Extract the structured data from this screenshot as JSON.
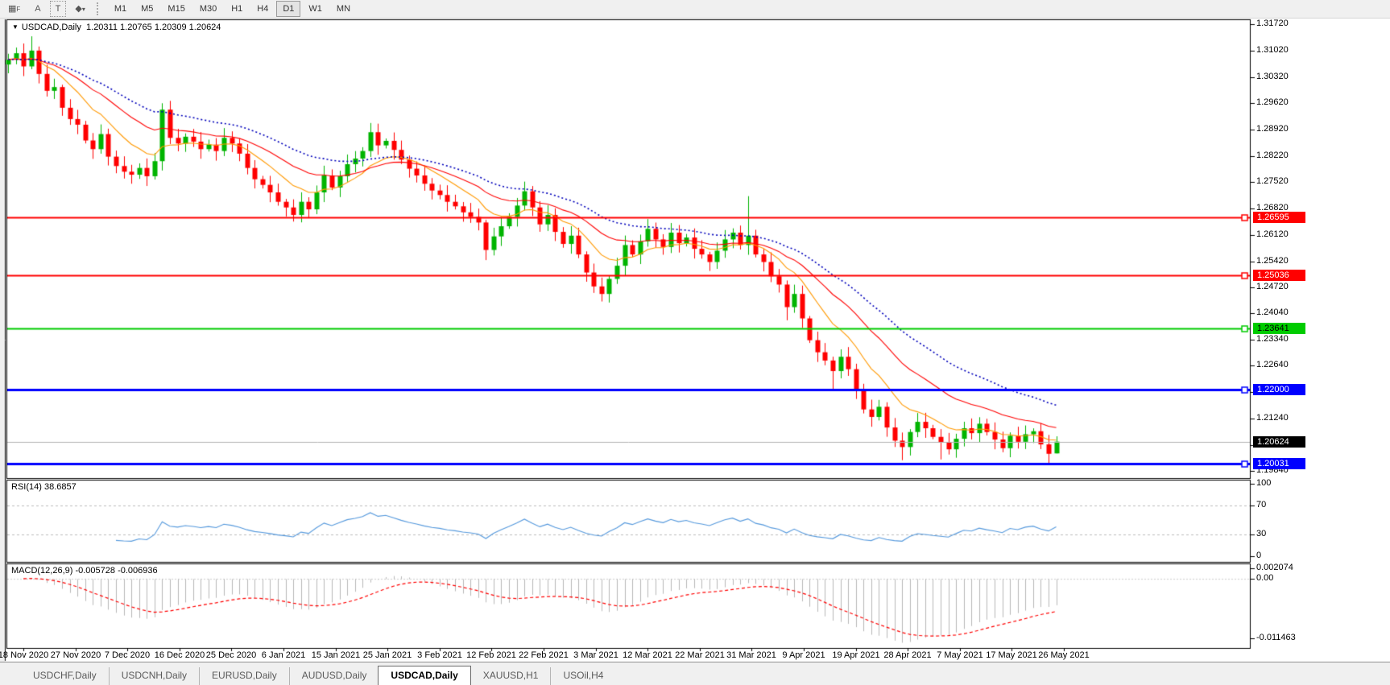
{
  "toolbar": {
    "tools": [
      {
        "name": "indicator-grid",
        "glyph": "▦",
        "sub": "F"
      },
      {
        "name": "text-label",
        "glyph": "A",
        "sub": ""
      },
      {
        "name": "text-box",
        "glyph": "T",
        "sub": ""
      },
      {
        "name": "shapes-dropdown",
        "glyph": "◆",
        "sub": "▾"
      }
    ],
    "timeframes": [
      "M1",
      "M5",
      "M15",
      "M30",
      "H1",
      "H4",
      "D1",
      "W1",
      "MN"
    ],
    "active_timeframe": "D1"
  },
  "chart": {
    "title_symbol": "USDCAD,Daily",
    "title_ohlc": "1.20311 1.20765 1.20309 1.20624",
    "dropdown_glyph": "▼"
  },
  "price_axis": {
    "ticks": [
      "1.31720",
      "1.31020",
      "1.30320",
      "1.29620",
      "1.28920",
      "1.28220",
      "1.27520",
      "1.26820",
      "1.26120",
      "1.25420",
      "1.24720",
      "1.24040",
      "1.23340",
      "1.22640",
      "1.21940",
      "1.21240",
      "1.20540",
      "1.19840"
    ]
  },
  "hlines": [
    {
      "price": "1.26595",
      "value": 1.26595,
      "color": "#ff0000",
      "width": 2,
      "text_color": "#ffffff"
    },
    {
      "price": "1.25036",
      "value": 1.25036,
      "color": "#ff0000",
      "width": 2,
      "text_color": "#ffffff"
    },
    {
      "price": "1.23641",
      "value": 1.23641,
      "color": "#00cc00",
      "width": 2,
      "text_color": "#000000"
    },
    {
      "price": "1.22000",
      "value": 1.22,
      "color": "#0000ff",
      "width": 3,
      "text_color": "#ffffff"
    },
    {
      "price": "1.20031",
      "value": 1.20031,
      "color": "#0000ff",
      "width": 3,
      "text_color": "#ffffff"
    }
  ],
  "current_price": {
    "price": "1.20624",
    "value": 1.20624,
    "line_color": "#b4b4b4",
    "bg": "#000000",
    "text_color": "#ffffff"
  },
  "rsi": {
    "label": "RSI(14) 38.6857",
    "period": 14,
    "last_value": 38.6857,
    "axis_labels": [
      "100",
      "70",
      "30",
      "0"
    ],
    "axis_values": [
      100,
      70,
      30,
      0
    ],
    "dashed_levels": [
      70,
      30
    ],
    "line_color": "#5599dd"
  },
  "macd": {
    "label": "MACD(12,26,9) -0.005728 -0.006936",
    "fast": 12,
    "slow": 26,
    "signal": 9,
    "main_value": -0.005728,
    "signal_value": -0.006936,
    "axis_labels": [
      "0.002074",
      "0.00",
      "-0.011463"
    ],
    "axis_values": [
      0.002074,
      0,
      -0.011463
    ],
    "histogram_color": "#b8b8b8",
    "signal_color": "#ff0000"
  },
  "date_axis": {
    "labels": [
      "18 Nov 2020",
      "27 Nov 2020",
      "7 Dec 2020",
      "16 Dec 2020",
      "25 Dec 2020",
      "6 Jan 2021",
      "15 Jan 2021",
      "25 Jan 2021",
      "3 Feb 2021",
      "12 Feb 2021",
      "22 Feb 2021",
      "3 Mar 2021",
      "12 Mar 2021",
      "22 Mar 2021",
      "31 Mar 2021",
      "9 Apr 2021",
      "19 Apr 2021",
      "28 Apr 2021",
      "7 May 2021",
      "17 May 2021",
      "26 May 2021"
    ]
  },
  "tabs": {
    "items": [
      "USDCHF,Daily",
      "USDCNH,Daily",
      "EURUSD,Daily",
      "AUDUSD,Daily",
      "USDCAD,Daily",
      "XAUUSD,H1",
      "USOil,H4"
    ],
    "active": "USDCAD,Daily"
  },
  "chart_data": {
    "type": "candlestick",
    "symbol": "USDCAD",
    "timeframe": "Daily",
    "up_color": "#00b400",
    "down_color": "#ff0000",
    "y_range": [
      1.1965,
      1.3183
    ],
    "closes": [
      1.3078,
      1.3095,
      1.306,
      1.3102,
      1.304,
      1.2995,
      1.3005,
      1.295,
      1.292,
      1.2905,
      1.2863,
      1.284,
      1.288,
      1.282,
      1.2795,
      1.278,
      1.2772,
      1.279,
      1.2768,
      1.2808,
      1.2945,
      1.287,
      1.2855,
      1.2873,
      1.286,
      1.284,
      1.2852,
      1.2835,
      1.287,
      1.2855,
      1.2828,
      1.279,
      1.276,
      1.2745,
      1.2725,
      1.27,
      1.2685,
      1.2665,
      1.27,
      1.268,
      1.2725,
      1.277,
      1.2738,
      1.2768,
      1.28,
      1.2815,
      1.2835,
      1.2885,
      1.285,
      1.2862,
      1.2838,
      1.2812,
      1.2788,
      1.277,
      1.2748,
      1.273,
      1.2718,
      1.27,
      1.2688,
      1.2672,
      1.266,
      1.2645,
      1.2572,
      1.2608,
      1.2635,
      1.266,
      1.269,
      1.2728,
      1.2685,
      1.264,
      1.2665,
      1.262,
      1.2588,
      1.261,
      1.256,
      1.2512,
      1.2475,
      1.2455,
      1.2495,
      1.253,
      1.2585,
      1.256,
      1.2595,
      1.2628,
      1.26,
      1.258,
      1.2618,
      1.259,
      1.2605,
      1.2575,
      1.256,
      1.254,
      1.257,
      1.26,
      1.2618,
      1.2585,
      1.261,
      1.256,
      1.254,
      1.2502,
      1.248,
      1.242,
      1.2455,
      1.239,
      1.2332,
      1.23,
      1.2278,
      1.225,
      1.2288,
      1.2255,
      1.22,
      1.2148,
      1.2128,
      1.2155,
      1.21,
      1.2065,
      1.2048,
      1.2088,
      1.2115,
      1.2098,
      1.2075,
      1.206,
      1.2042,
      1.207,
      1.2098,
      1.2085,
      1.211,
      1.2088,
      1.2068,
      1.2045,
      1.2078,
      1.2062,
      1.2082,
      1.209,
      1.2055,
      1.203,
      1.20624
    ],
    "first_open": 1.3065,
    "last_bar": {
      "open": 1.20311,
      "high": 1.20765,
      "low": 1.20309,
      "close": 1.20624
    },
    "wick_overrides": {
      "3": {
        "high": 1.314
      },
      "20": {
        "high": 1.2962
      },
      "62": {
        "low": 1.2545
      },
      "96": {
        "high": 1.2715
      },
      "101": {
        "low": 1.2385
      },
      "107": {
        "low": 1.22
      },
      "116": {
        "low": 1.2013
      },
      "121": {
        "low": 1.2015
      },
      "135": {
        "low": 1.2003
      },
      "136": {
        "open": 1.20311,
        "high": 1.20765,
        "low": 1.20309
      }
    },
    "moving_averages": [
      {
        "period": 10,
        "color": "#ff9900",
        "style": "solid"
      },
      {
        "period": 21,
        "color": "#ff0000",
        "style": "solid"
      },
      {
        "period": 34,
        "color": "#0000bb",
        "style": "dot"
      }
    ]
  }
}
